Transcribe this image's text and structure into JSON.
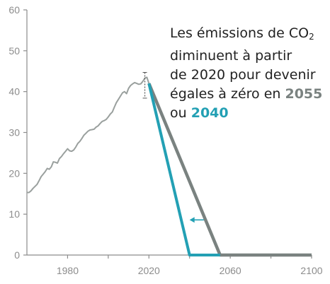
{
  "chart_data": {
    "type": "line",
    "title": "",
    "xlabel": "",
    "ylabel": "",
    "xlim": [
      1960,
      2100
    ],
    "ylim": [
      0,
      60
    ],
    "x_ticks": [
      1980,
      2020,
      2060,
      2100
    ],
    "y_ticks": [
      0,
      10,
      20,
      30,
      40,
      50,
      60
    ],
    "grid": false,
    "colors": {
      "historical": "#9aa09e",
      "scenario_2055": "#7a8280",
      "scenario_2040": "#23a0b4",
      "axis": "#8c8c8c"
    },
    "series": [
      {
        "key": "historical",
        "x": [
          1960,
          1961,
          1962,
          1963,
          1964,
          1965,
          1966,
          1967,
          1968,
          1969,
          1970,
          1971,
          1972,
          1973,
          1974,
          1975,
          1976,
          1977,
          1978,
          1979,
          1980,
          1981,
          1982,
          1983,
          1984,
          1985,
          1986,
          1987,
          1988,
          1989,
          1990,
          1991,
          1992,
          1993,
          1994,
          1995,
          1996,
          1997,
          1998,
          1999,
          2000,
          2001,
          2002,
          2003,
          2004,
          2005,
          2006,
          2007,
          2008,
          2009,
          2010,
          2011,
          2012,
          2013,
          2014,
          2015,
          2016,
          2017,
          2018,
          2019,
          2020
        ],
        "values": [
          15.3,
          15.3,
          15.7,
          16.3,
          16.8,
          17.3,
          18.2,
          19.2,
          19.8,
          20.4,
          21.2,
          21.0,
          21.6,
          22.8,
          22.7,
          22.5,
          23.6,
          24.1,
          24.8,
          25.4,
          26.0,
          25.5,
          25.4,
          25.7,
          26.4,
          27.3,
          27.8,
          28.5,
          29.3,
          29.8,
          30.3,
          30.6,
          30.7,
          30.8,
          31.3,
          31.6,
          32.2,
          32.7,
          32.9,
          33.2,
          33.8,
          34.5,
          35.0,
          36.2,
          37.3,
          38.1,
          38.9,
          39.7,
          40.0,
          39.5,
          40.8,
          41.5,
          41.9,
          42.2,
          42.0,
          41.8,
          41.9,
          42.5,
          43.3,
          43.5,
          42.0
        ]
      },
      {
        "key": "scenario_2055",
        "x": [
          2020,
          2055,
          2100
        ],
        "values": [
          42,
          0,
          0
        ]
      },
      {
        "key": "scenario_2040",
        "x": [
          2020,
          2040,
          2055
        ],
        "values": [
          42,
          0,
          0
        ]
      }
    ],
    "error_bar": {
      "x": 2018,
      "low": 38.4,
      "high": 44.7
    },
    "shift_arrow": {
      "y": 8.6,
      "x_from": 2047,
      "x_to": 2040
    }
  },
  "annotation": {
    "line1_prefix": "Les émissions de CO",
    "line1_subscript": "2",
    "line2": "diminuent à partir",
    "line3": "de 2020 pour devenir",
    "line4": "égales à zéro en ",
    "year_2055": "2055",
    "line5_prefix": "ou ",
    "year_2040": "2040"
  }
}
